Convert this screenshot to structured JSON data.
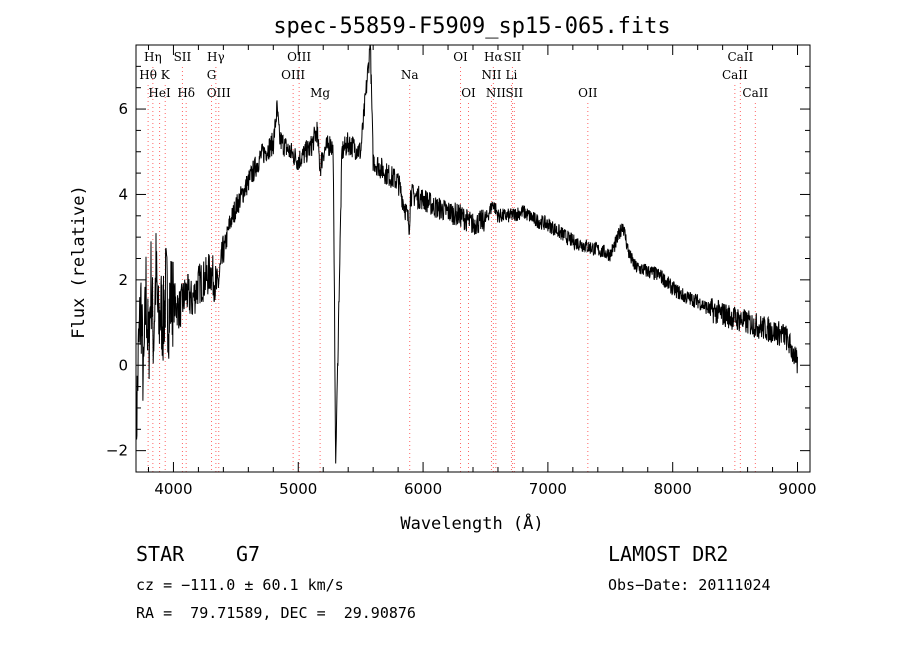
{
  "chart_data": {
    "type": "line",
    "title": "spec-55859-F5909_sp15-065.fits",
    "xlabel": "Wavelength (Å)",
    "ylabel": "Flux (relative)",
    "xlim": [
      3700,
      9100
    ],
    "ylim": [
      -2.5,
      7.5
    ],
    "xticks": [
      4000,
      5000,
      6000,
      7000,
      8000,
      9000
    ],
    "yticks": [
      -2,
      0,
      2,
      4,
      6
    ],
    "grid": false,
    "line_color": "#000000",
    "marker_color": "#ff6666",
    "series": [
      {
        "x": [
          3700,
          3720,
          3740,
          3760,
          3780,
          3800,
          3820,
          3840,
          3860,
          3880,
          3900,
          3920,
          3940,
          3960,
          3980,
          4000,
          4050,
          4100,
          4150,
          4200,
          4250,
          4300,
          4350,
          4400,
          4450,
          4500,
          4600,
          4700,
          4800,
          4830,
          4850,
          4900,
          5000,
          5100,
          5150,
          5175,
          5200,
          5260,
          5280,
          5300,
          5350,
          5400,
          5500,
          5577,
          5600,
          5700,
          5800,
          5890,
          5900,
          6000,
          6100,
          6200,
          6300,
          6400,
          6500,
          6563,
          6600,
          6700,
          6800,
          6900,
          7000,
          7100,
          7200,
          7300,
          7400,
          7500,
          7550,
          7600,
          7650,
          7700,
          7800,
          7900,
          8000,
          8100,
          8200,
          8300,
          8400,
          8500,
          8600,
          8700,
          8800,
          8900,
          8950,
          9000
        ],
        "y": [
          -1.8,
          0.3,
          1.5,
          -0.5,
          1.8,
          0.2,
          2.0,
          0.6,
          2.2,
          0.9,
          1.3,
          1.0,
          1.9,
          1.2,
          1.6,
          1.5,
          1.3,
          1.7,
          1.5,
          1.9,
          2.0,
          2.2,
          1.8,
          2.6,
          3.3,
          3.7,
          4.3,
          4.9,
          5.2,
          6.0,
          5.3,
          5.1,
          4.8,
          5.1,
          5.5,
          4.6,
          5.0,
          5.2,
          5.0,
          -2.3,
          5.0,
          5.2,
          5.0,
          7.5,
          4.8,
          4.5,
          4.3,
          3.3,
          4.0,
          3.9,
          3.7,
          3.6,
          3.5,
          3.3,
          3.4,
          3.8,
          3.5,
          3.5,
          3.6,
          3.4,
          3.3,
          3.1,
          2.9,
          2.8,
          2.7,
          2.6,
          2.9,
          3.3,
          2.6,
          2.3,
          2.2,
          2.1,
          1.8,
          1.6,
          1.5,
          1.3,
          1.2,
          1.1,
          1.0,
          0.9,
          0.8,
          0.7,
          0.4,
          0.0
        ]
      }
    ],
    "lines": [
      {
        "label": "Hη",
        "wave": 3835,
        "row": 0
      },
      {
        "label": "Hθ",
        "wave": 3797,
        "row": 1
      },
      {
        "label": "HeI",
        "wave": 3889,
        "row": 2
      },
      {
        "label": "K",
        "wave": 3934,
        "row": 1
      },
      {
        "label": "SII",
        "wave": 4072,
        "row": 0
      },
      {
        "label": "Hδ",
        "wave": 4102,
        "row": 2
      },
      {
        "label": "Hγ",
        "wave": 4340,
        "row": 0
      },
      {
        "label": "G",
        "wave": 4305,
        "row": 1
      },
      {
        "label": "OIII",
        "wave": 4363,
        "row": 2
      },
      {
        "label": "OIII",
        "wave": 5007,
        "row": 0
      },
      {
        "label": "OIII",
        "wave": 4959,
        "row": 1
      },
      {
        "label": "Mg",
        "wave": 5175,
        "row": 2
      },
      {
        "label": "Na",
        "wave": 5893,
        "row": 1
      },
      {
        "label": "OI",
        "wave": 6300,
        "row": 0
      },
      {
        "label": "OI",
        "wave": 6364,
        "row": 2
      },
      {
        "label": "Hα",
        "wave": 6563,
        "row": 0
      },
      {
        "label": "SII",
        "wave": 6716,
        "row": 0
      },
      {
        "label": "NII",
        "wave": 6548,
        "row": 1
      },
      {
        "label": "Li",
        "wave": 6708,
        "row": 1
      },
      {
        "label": "NII",
        "wave": 6583,
        "row": 2
      },
      {
        "label": "SII",
        "wave": 6731,
        "row": 2
      },
      {
        "label": "OII",
        "wave": 7320,
        "row": 2
      },
      {
        "label": "CaII",
        "wave": 8542,
        "row": 0
      },
      {
        "label": "CaII",
        "wave": 8498,
        "row": 1
      },
      {
        "label": "CaII",
        "wave": 8662,
        "row": 2
      }
    ]
  },
  "info": {
    "object_class": "STAR",
    "subclass": "G7",
    "survey": "LAMOST DR2",
    "cz": "cz = −111.0 ± 60.1 km/s",
    "obs_date": "Obs−Date: 20111024",
    "radec": "RA =  79.71589, DEC =  29.90876"
  }
}
